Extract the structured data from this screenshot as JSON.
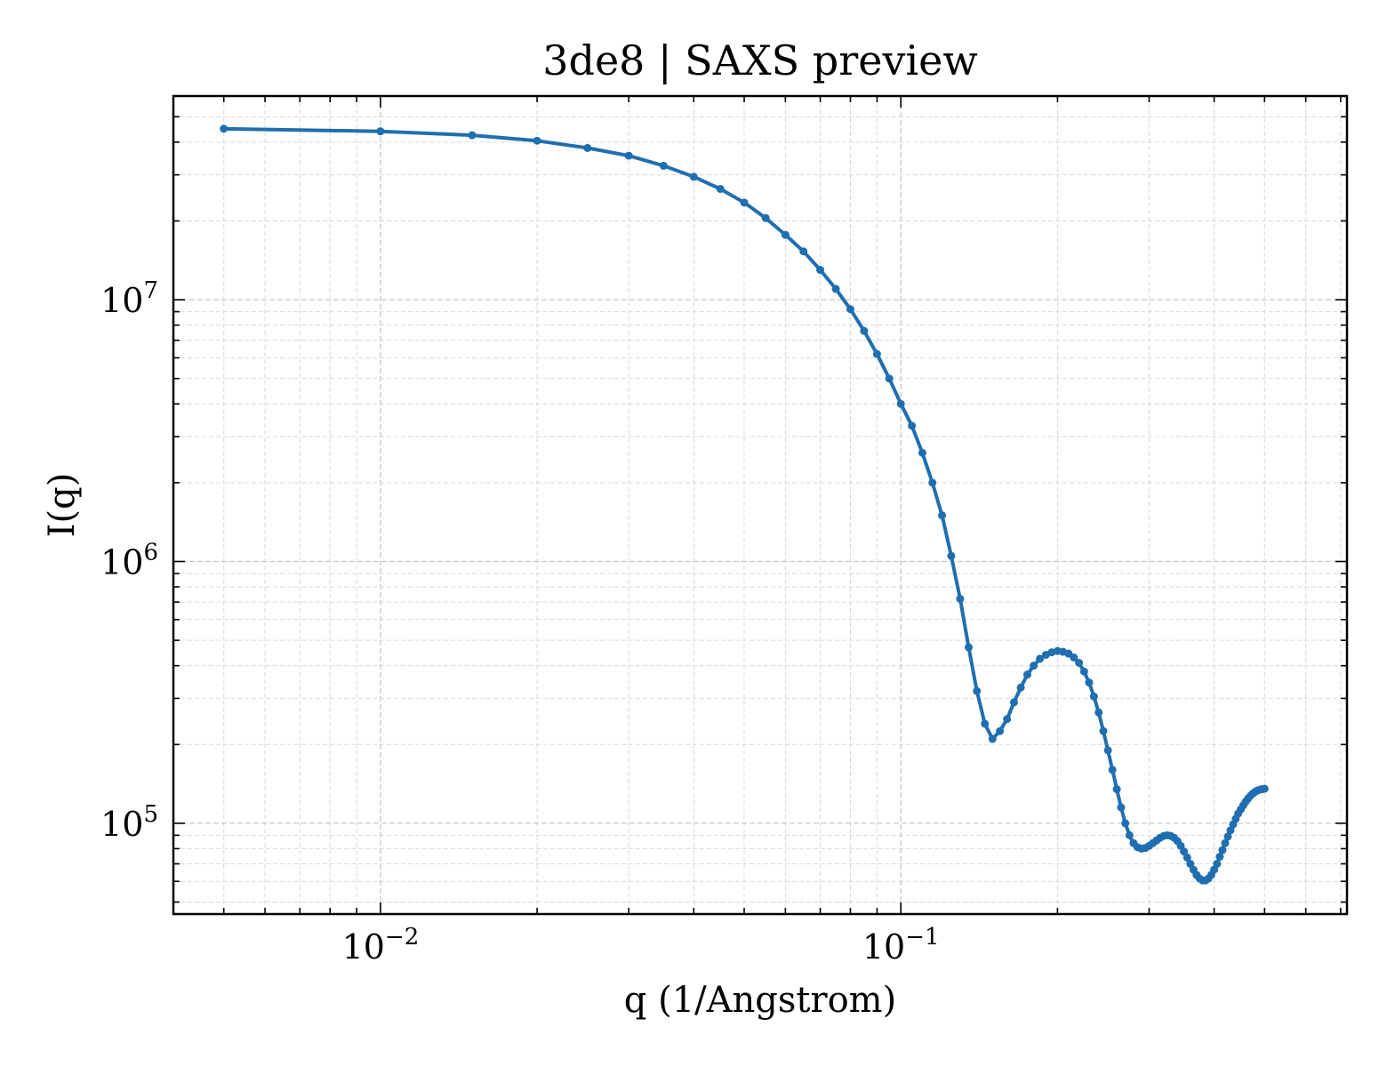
{
  "chart_data": {
    "type": "line",
    "title": "3de8 | SAXS preview",
    "xlabel": "q (1/Angstrom)",
    "ylabel": "I(q)",
    "xscale": "log",
    "yscale": "log",
    "xlim": [
      0.004,
      0.72
    ],
    "ylim": [
      45000,
      60000000
    ],
    "grid": true,
    "legend": "none",
    "x_ticks": [
      {
        "value": 0.01,
        "base": "10",
        "exp": "−2"
      },
      {
        "value": 0.1,
        "base": "10",
        "exp": "−1"
      }
    ],
    "y_ticks": [
      {
        "value": 100000,
        "base": "10",
        "exp": "5"
      },
      {
        "value": 1000000,
        "base": "10",
        "exp": "6"
      },
      {
        "value": 10000000,
        "base": "10",
        "exp": "7"
      }
    ],
    "series": [
      {
        "color": "#1f6fb0",
        "x": [
          0.005,
          0.01,
          0.015,
          0.02,
          0.025,
          0.03,
          0.035,
          0.04,
          0.045,
          0.05,
          0.055,
          0.06,
          0.065,
          0.07,
          0.075,
          0.08,
          0.085,
          0.09,
          0.095,
          0.1,
          0.105,
          0.11,
          0.115,
          0.12,
          0.125,
          0.13,
          0.135,
          0.14,
          0.145,
          0.15,
          0.155,
          0.16,
          0.165,
          0.17,
          0.175,
          0.18,
          0.185,
          0.19,
          0.195,
          0.2,
          0.205,
          0.21,
          0.215,
          0.22,
          0.225,
          0.23,
          0.235,
          0.24,
          0.245,
          0.25,
          0.255,
          0.26,
          0.265,
          0.27,
          0.275,
          0.28,
          0.285,
          0.29,
          0.295,
          0.3,
          0.305,
          0.31,
          0.315,
          0.32,
          0.325,
          0.33,
          0.335,
          0.34,
          0.345,
          0.35,
          0.355,
          0.36,
          0.365,
          0.37,
          0.375,
          0.38,
          0.385,
          0.39,
          0.395,
          0.4,
          0.405,
          0.41,
          0.415,
          0.42,
          0.425,
          0.43,
          0.435,
          0.44,
          0.445,
          0.45,
          0.455,
          0.46,
          0.465,
          0.47,
          0.475,
          0.48,
          0.485,
          0.49,
          0.495,
          0.5
        ],
        "y": [
          45000000,
          44000000,
          42500000,
          40500000,
          38000000,
          35500000,
          32500000,
          29500000,
          26500000,
          23500000,
          20500000,
          17700000,
          15300000,
          13000000,
          11000000,
          9200000,
          7600000,
          6200000,
          5000000,
          4000000,
          3300000,
          2600000,
          2000000,
          1500000,
          1050000,
          720000,
          470000,
          320000,
          240000,
          210000,
          225000,
          250000,
          290000,
          330000,
          370000,
          400000,
          425000,
          440000,
          450000,
          455000,
          452000,
          445000,
          430000,
          410000,
          380000,
          345000,
          305000,
          265000,
          225000,
          190000,
          160000,
          135000,
          115000,
          100000,
          90000,
          84000,
          81000,
          80000,
          80500,
          82000,
          84000,
          86000,
          88000,
          89500,
          90000,
          89500,
          88000,
          85500,
          82000,
          78000,
          74000,
          70000,
          66500,
          63500,
          61500,
          60500,
          60500,
          61500,
          63500,
          66500,
          70000,
          74500,
          79000,
          84000,
          89000,
          94000,
          99000,
          104000,
          109000,
          113000,
          117000,
          121000,
          124500,
          127500,
          130000,
          132000,
          133500,
          134500,
          135000,
          135500
        ]
      }
    ]
  }
}
